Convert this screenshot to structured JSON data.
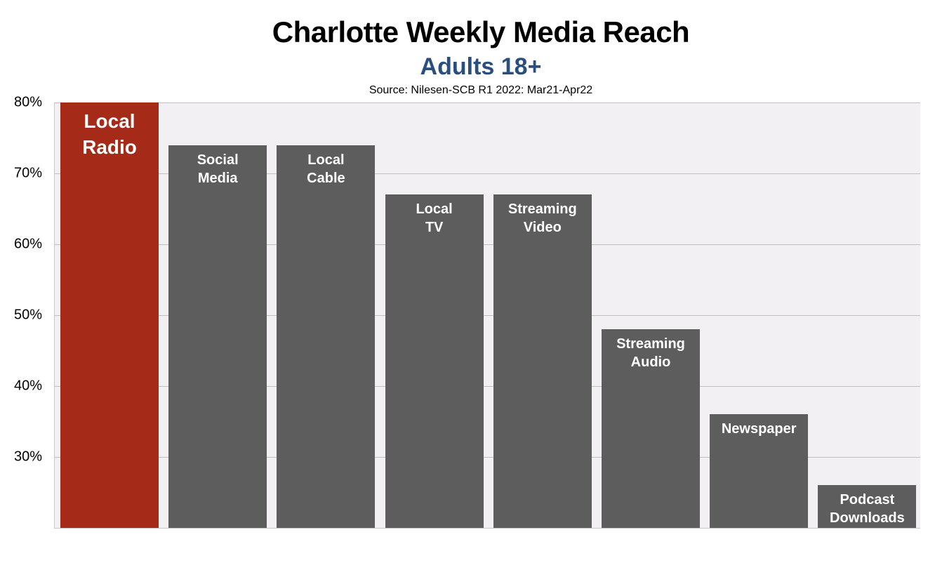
{
  "header": {
    "title": "Charlotte Weekly Media Reach",
    "subtitle": "Adults 18+",
    "source": "Source: Nilesen-SCB R1 2022: Mar21-Apr22"
  },
  "colors": {
    "highlight": "#a52b18",
    "bar": "#5d5d5d",
    "subtitle": "#2a4f7e",
    "plot_bg": "#f2f0f3"
  },
  "axis": {
    "ticks": [
      "80%",
      "70%",
      "60%",
      "50%",
      "40%",
      "30%"
    ]
  },
  "chart_data": {
    "type": "bar",
    "title": "Charlotte Weekly Media Reach",
    "subtitle": "Adults 18+",
    "source": "Source: Nilesen-SCB R1 2022: Mar21-Apr22",
    "categories": [
      "Local Radio",
      "Social Media",
      "Local Cable",
      "Local TV",
      "Streaming Video",
      "Streaming Audio",
      "Newspaper",
      "Podcast Downloads"
    ],
    "values": [
      80,
      74,
      74,
      67,
      67,
      48,
      36,
      26
    ],
    "unit": "%",
    "xlabel": "",
    "ylabel": "",
    "ylim": [
      20,
      80
    ],
    "yticks": [
      30,
      40,
      50,
      60,
      70,
      80
    ],
    "grid": true,
    "legend": "none",
    "highlighted_category": "Local Radio",
    "labels_inside_bars": true
  },
  "bars": [
    {
      "label": "Local\nRadio",
      "value": 80,
      "highlight": true
    },
    {
      "label": "Social\nMedia",
      "value": 74
    },
    {
      "label": "Local\nCable",
      "value": 74
    },
    {
      "label": "Local\nTV",
      "value": 67
    },
    {
      "label": "Streaming\nVideo",
      "value": 67
    },
    {
      "label": "Streaming\nAudio",
      "value": 48
    },
    {
      "label": "Newspaper",
      "value": 36
    },
    {
      "label": "Podcast\nDownloads",
      "value": 26
    }
  ]
}
